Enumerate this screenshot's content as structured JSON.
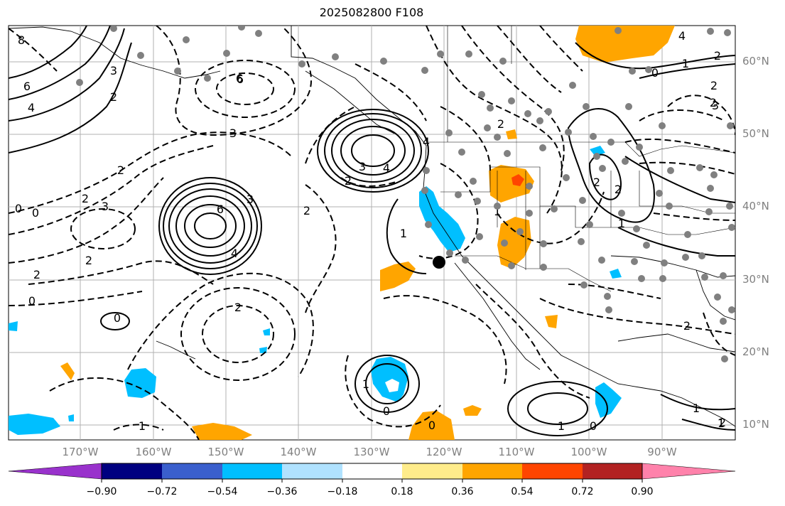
{
  "title": "2025082800 F108",
  "lat_labels": [
    "60°N",
    "50°N",
    "40°N",
    "30°N",
    "20°N",
    "10°N"
  ],
  "lon_labels": [
    "170°W",
    "160°W",
    "150°W",
    "140°W",
    "130°W",
    "120°W",
    "110°W",
    "100°W",
    "90°W"
  ],
  "colorbar": {
    "ticks": [
      "−0.90",
      "−0.72",
      "−0.54",
      "−0.36",
      "−0.18",
      "0.18",
      "0.36",
      "0.54",
      "0.72",
      "0.90"
    ],
    "colors": [
      "#9932cc",
      "#000080",
      "#3a5fcd",
      "#00bfff",
      "#b0e2ff",
      "#ffffff",
      "#ffec8b",
      "#ffa500",
      "#ff4500",
      "#b22222",
      "#ff82ab"
    ]
  },
  "contour_labels": {
    "solid": [
      "6",
      "4",
      "3",
      "6",
      "4",
      "3",
      "4",
      "3",
      "6",
      "4",
      "1",
      "1",
      "0",
      "1",
      "0",
      "1",
      "2",
      "2",
      "4",
      "2",
      "0",
      "1",
      "0",
      "1"
    ],
    "dashed": [
      "8",
      "6",
      "2",
      "3",
      "2",
      "2",
      "3",
      "2",
      "0",
      "0",
      "0",
      "2",
      "2",
      "1",
      "2",
      "1",
      "0",
      "2",
      "2",
      "3",
      "2",
      "2",
      "2",
      "1",
      "2"
    ]
  },
  "map_marker": "black dot near 32°N 120°W"
}
